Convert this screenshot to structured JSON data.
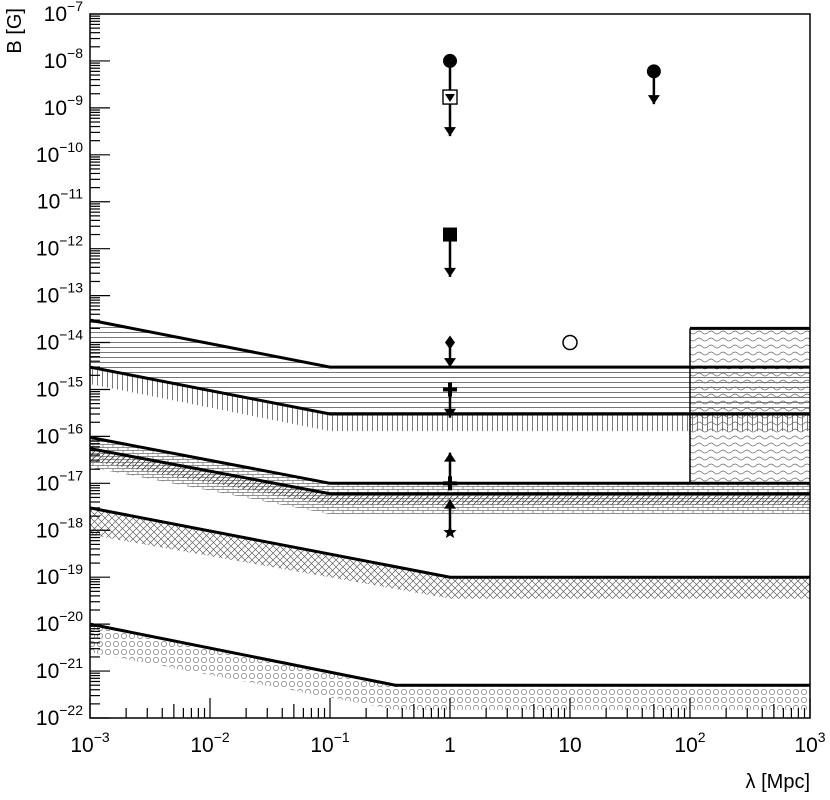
{
  "chart_data": {
    "type": "scatter",
    "title": "",
    "xlabel": "λ [Mpc]",
    "ylabel": "B [G]",
    "xscale": "log",
    "yscale": "log",
    "xlim": [
      0.001,
      1000
    ],
    "ylim": [
      1e-22,
      1e-07
    ],
    "grid": false,
    "x_ticks": [
      {
        "value": 0.001,
        "base": "10",
        "exp": "−3"
      },
      {
        "value": 0.01,
        "base": "10",
        "exp": "−2"
      },
      {
        "value": 0.1,
        "base": "10",
        "exp": "−1"
      },
      {
        "value": 1,
        "base": "1",
        "exp": ""
      },
      {
        "value": 10,
        "base": "10",
        "exp": ""
      },
      {
        "value": 100,
        "base": "10",
        "exp": "2"
      },
      {
        "value": 1000,
        "base": "10",
        "exp": "3"
      }
    ],
    "y_ticks": [
      {
        "value": 1e-07,
        "base": "10",
        "exp": "−7"
      },
      {
        "value": 1e-08,
        "base": "10",
        "exp": "−8"
      },
      {
        "value": 1e-09,
        "base": "10",
        "exp": "−9"
      },
      {
        "value": 1e-10,
        "base": "10",
        "exp": "−10"
      },
      {
        "value": 1e-11,
        "base": "10",
        "exp": "−11"
      },
      {
        "value": 1e-12,
        "base": "10",
        "exp": "−12"
      },
      {
        "value": 1e-13,
        "base": "10",
        "exp": "−13"
      },
      {
        "value": 1e-14,
        "base": "10",
        "exp": "−14"
      },
      {
        "value": 1e-15,
        "base": "10",
        "exp": "−15"
      },
      {
        "value": 1e-16,
        "base": "10",
        "exp": "−16"
      },
      {
        "value": 1e-17,
        "base": "10",
        "exp": "−17"
      },
      {
        "value": 1e-18,
        "base": "10",
        "exp": "−18"
      },
      {
        "value": 1e-19,
        "base": "10",
        "exp": "−19"
      },
      {
        "value": 1e-20,
        "base": "10",
        "exp": "−20"
      },
      {
        "value": 1e-21,
        "base": "10",
        "exp": "−21"
      },
      {
        "value": 1e-22,
        "base": "10",
        "exp": "−22"
      }
    ],
    "bound_regions": [
      {
        "id": "band-a",
        "pattern": "hlines",
        "bound": {
          "x": [
            0.001,
            0.1,
            1000
          ],
          "y": [
            3e-14,
            3e-15,
            3e-15
          ]
        },
        "fill_to": {
          "x": [
            0.001,
            0.1,
            1000
          ],
          "y": [
            3e-15,
            3e-16,
            3e-16
          ]
        }
      },
      {
        "id": "band-b",
        "pattern": "vlines",
        "bound": {
          "x": [
            0.001,
            0.1,
            1000
          ],
          "y": [
            3e-15,
            3e-16,
            3e-16
          ]
        },
        "fill_to": {
          "x": [
            0.001,
            0.1,
            1000
          ],
          "y": [
            1.3e-15,
            1.3e-16,
            1.3e-16
          ]
        }
      },
      {
        "id": "band-c",
        "pattern": "bricks",
        "bound": {
          "x": [
            0.001,
            0.1,
            1000
          ],
          "y": [
            9.5e-17,
            1e-17,
            1e-17
          ]
        },
        "fill_to": {
          "x": [
            0.001,
            0.1,
            1000
          ],
          "y": [
            2.2e-17,
            2.2e-18,
            2.2e-18
          ]
        }
      },
      {
        "id": "band-d",
        "pattern": "hatch",
        "bound": {
          "x": [
            0.001,
            0.1,
            1000
          ],
          "y": [
            5.5e-17,
            6e-18,
            6e-18
          ]
        },
        "fill_to": {
          "x": [
            0.001,
            0.1,
            1000
          ],
          "y": [
            3e-17,
            3.5e-18,
            3.5e-18
          ]
        }
      },
      {
        "id": "band-e",
        "pattern": "crosshatch",
        "bound": {
          "x": [
            0.001,
            1,
            1000
          ],
          "y": [
            3e-18,
            1e-19,
            1e-19
          ]
        },
        "fill_to": {
          "x": [
            0.001,
            1,
            1000
          ],
          "y": [
            8e-19,
            3.5e-20,
            3.5e-20
          ]
        }
      },
      {
        "id": "band-f",
        "pattern": "circles",
        "bound": {
          "x": [
            0.001,
            0.35,
            1000
          ],
          "y": [
            1e-20,
            5e-22,
            5e-22
          ]
        },
        "fill_to": {
          "x": [
            0.001,
            0.35,
            1000
          ],
          "y": [
            2.5e-21,
            1.5e-22,
            1.5e-22
          ]
        }
      },
      {
        "id": "box-g",
        "pattern": "waves",
        "bound": {
          "x": [
            100,
            1000
          ],
          "y": [
            2e-14,
            2e-14
          ]
        },
        "fill_to": {
          "x": [
            100,
            1000
          ],
          "y": [
            1e-17,
            1e-17
          ]
        }
      }
    ],
    "upper_limits": [
      {
        "marker": "filled-circle",
        "x": 1,
        "y": 1e-08,
        "arrow_to": 2.5e-10
      },
      {
        "marker": "open-square-triangle",
        "x": 1,
        "y": 1.7e-09,
        "arrow_to": null
      },
      {
        "marker": "filled-circle",
        "x": 50,
        "y": 6e-09,
        "arrow_to": 1.2e-09
      },
      {
        "marker": "filled-square",
        "x": 1,
        "y": 2e-12,
        "arrow_to": 2.5e-13
      },
      {
        "marker": "diamond",
        "x": 1,
        "y": 1e-14,
        "arrow_to": 3e-15
      },
      {
        "marker": "cross",
        "x": 1,
        "y": 1e-15,
        "arrow_to": 2.5e-16
      }
    ],
    "lower_limits": [
      {
        "marker": "cross",
        "x": 1,
        "y": 1e-17,
        "arrow_to": 4.5e-17
      },
      {
        "marker": "star",
        "x": 1,
        "y": 9e-19,
        "arrow_to": 4.5e-18
      }
    ],
    "points": [
      {
        "marker": "open-circle",
        "x": 10,
        "y": 1e-14
      }
    ]
  }
}
